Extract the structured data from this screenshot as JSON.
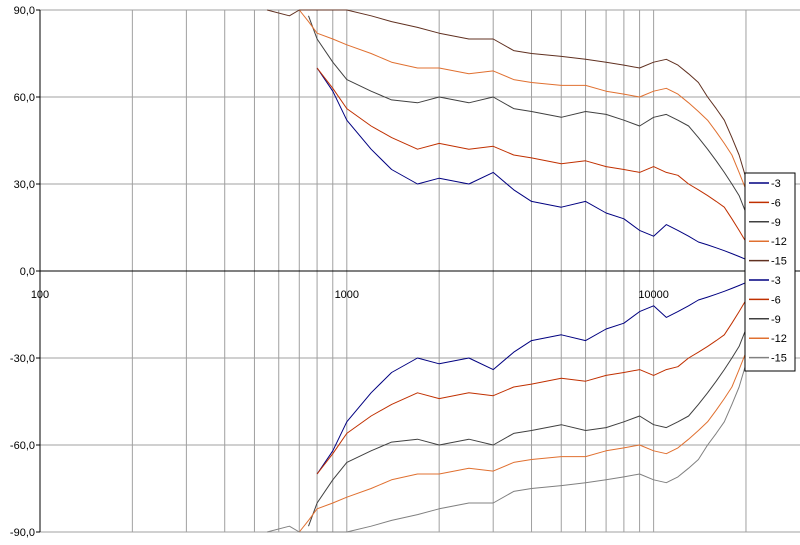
{
  "chart_data": {
    "type": "line",
    "title": "",
    "xlabel": "",
    "ylabel": "",
    "x_scale": "log",
    "xlim": [
      100,
      30000
    ],
    "ylim": [
      -90,
      90
    ],
    "grid": true,
    "legend_position": "right",
    "y_ticks": [
      90,
      60,
      30,
      0,
      -30,
      -60,
      -90
    ],
    "y_tick_labels": [
      "90,0",
      "60,0",
      "30,0",
      "0,0",
      "-30,0",
      "-60,0",
      "-90,0"
    ],
    "x_ticks": [
      100,
      1000,
      10000
    ],
    "x_tick_labels": [
      "100",
      "1000",
      "10000"
    ],
    "x": [
      550,
      650,
      700,
      750,
      800,
      900,
      1000,
      1200,
      1400,
      1700,
      2000,
      2500,
      3000,
      3500,
      4000,
      5000,
      6000,
      7000,
      8000,
      9000,
      10000,
      11000,
      12000,
      13000,
      14000,
      15000,
      16000,
      17000,
      18000,
      19000,
      20000
    ],
    "series": [
      {
        "name": "-3",
        "color": "#000080",
        "values": [
          null,
          null,
          null,
          null,
          70,
          62,
          52,
          42,
          35,
          30,
          32,
          30,
          34,
          28,
          24,
          22,
          24,
          20,
          18,
          14,
          12,
          16,
          14,
          12,
          10,
          9,
          8,
          7,
          6,
          5,
          4
        ]
      },
      {
        "name": "-6",
        "color": "#c03000",
        "values": [
          null,
          null,
          null,
          null,
          70,
          63,
          56,
          50,
          46,
          42,
          44,
          42,
          43,
          40,
          39,
          37,
          38,
          36,
          35,
          34,
          36,
          34,
          33,
          30,
          28,
          26,
          24,
          22,
          18,
          14,
          10
        ]
      },
      {
        "name": "-9",
        "color": "#404040",
        "values": [
          null,
          null,
          null,
          88,
          80,
          72,
          66,
          62,
          59,
          58,
          60,
          58,
          60,
          56,
          55,
          53,
          55,
          54,
          52,
          50,
          53,
          54,
          52,
          50,
          46,
          42,
          38,
          34,
          30,
          26,
          20
        ]
      },
      {
        "name": "-12",
        "color": "#e07030",
        "values": [
          null,
          null,
          90,
          86,
          82,
          80,
          78,
          75,
          72,
          70,
          70,
          68,
          69,
          66,
          65,
          64,
          64,
          62,
          61,
          60,
          62,
          63,
          61,
          58,
          55,
          52,
          48,
          44,
          40,
          34,
          28
        ]
      },
      {
        "name": "-15",
        "color": "#603020",
        "values": [
          90,
          88,
          90,
          90,
          90,
          90,
          90,
          88,
          86,
          84,
          82,
          80,
          80,
          76,
          75,
          74,
          73,
          72,
          71,
          70,
          72,
          73,
          71,
          68,
          65,
          60,
          56,
          52,
          46,
          40,
          32
        ]
      },
      {
        "name": "-3",
        "color": "#000080",
        "values": [
          null,
          null,
          null,
          null,
          -70,
          -62,
          -52,
          -42,
          -35,
          -30,
          -32,
          -30,
          -34,
          -28,
          -24,
          -22,
          -24,
          -20,
          -18,
          -14,
          -12,
          -16,
          -14,
          -12,
          -10,
          -9,
          -8,
          -7,
          -6,
          -5,
          -4
        ]
      },
      {
        "name": "-6",
        "color": "#c03000",
        "values": [
          null,
          null,
          null,
          null,
          -70,
          -63,
          -56,
          -50,
          -46,
          -42,
          -44,
          -42,
          -43,
          -40,
          -39,
          -37,
          -38,
          -36,
          -35,
          -34,
          -36,
          -34,
          -33,
          -30,
          -28,
          -26,
          -24,
          -22,
          -18,
          -14,
          -10
        ]
      },
      {
        "name": "-9",
        "color": "#404040",
        "values": [
          null,
          null,
          null,
          -88,
          -80,
          -72,
          -66,
          -62,
          -59,
          -58,
          -60,
          -58,
          -60,
          -56,
          -55,
          -53,
          -55,
          -54,
          -52,
          -50,
          -53,
          -54,
          -52,
          -50,
          -46,
          -42,
          -38,
          -34,
          -30,
          -26,
          -20
        ]
      },
      {
        "name": "-12",
        "color": "#e07030",
        "values": [
          null,
          null,
          -90,
          -86,
          -82,
          -80,
          -78,
          -75,
          -72,
          -70,
          -70,
          -68,
          -69,
          -66,
          -65,
          -64,
          -64,
          -62,
          -61,
          -60,
          -62,
          -63,
          -61,
          -58,
          -55,
          -52,
          -48,
          -44,
          -40,
          -34,
          -28
        ]
      },
      {
        "name": "-15",
        "color": "#808080",
        "values": [
          -90,
          -88,
          -90,
          -90,
          -90,
          -90,
          -90,
          -88,
          -86,
          -84,
          -82,
          -80,
          -80,
          -76,
          -75,
          -74,
          -73,
          -72,
          -71,
          -70,
          -72,
          -73,
          -71,
          -68,
          -65,
          -60,
          -56,
          -52,
          -46,
          -40,
          -32
        ]
      }
    ]
  }
}
